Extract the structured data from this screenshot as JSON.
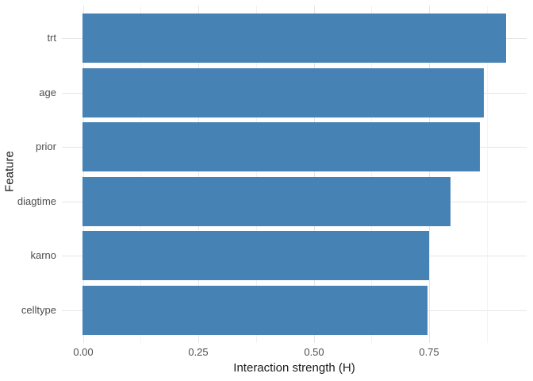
{
  "chart_data": {
    "type": "bar",
    "orientation": "horizontal",
    "title": "",
    "xlabel": "Interaction strength (H)",
    "ylabel": "Feature",
    "categories": [
      "trt",
      "age",
      "prior",
      "diagtime",
      "karno",
      "celltype"
    ],
    "values": [
      0.917,
      0.87,
      0.86,
      0.797,
      0.75,
      0.747
    ],
    "xlim": [
      0,
      0.96
    ],
    "x_ticks": [
      {
        "value": 0.0,
        "label": "0.00"
      },
      {
        "value": 0.25,
        "label": "0.25"
      },
      {
        "value": 0.5,
        "label": "0.50"
      },
      {
        "value": 0.75,
        "label": "0.75"
      }
    ],
    "x_minor_ticks": [
      0.125,
      0.375,
      0.625,
      0.875
    ],
    "grid": "major+minor vertical, major horizontal at category centers",
    "legend": "none",
    "bar_color": "#4682b4",
    "grid_major_color": "#e6e6e6",
    "grid_minor_color": "#f2f2f2",
    "tick_label_color": "#4d4d4d",
    "axis_title_color": "#1a1a1a",
    "background_color": "#ffffff"
  }
}
